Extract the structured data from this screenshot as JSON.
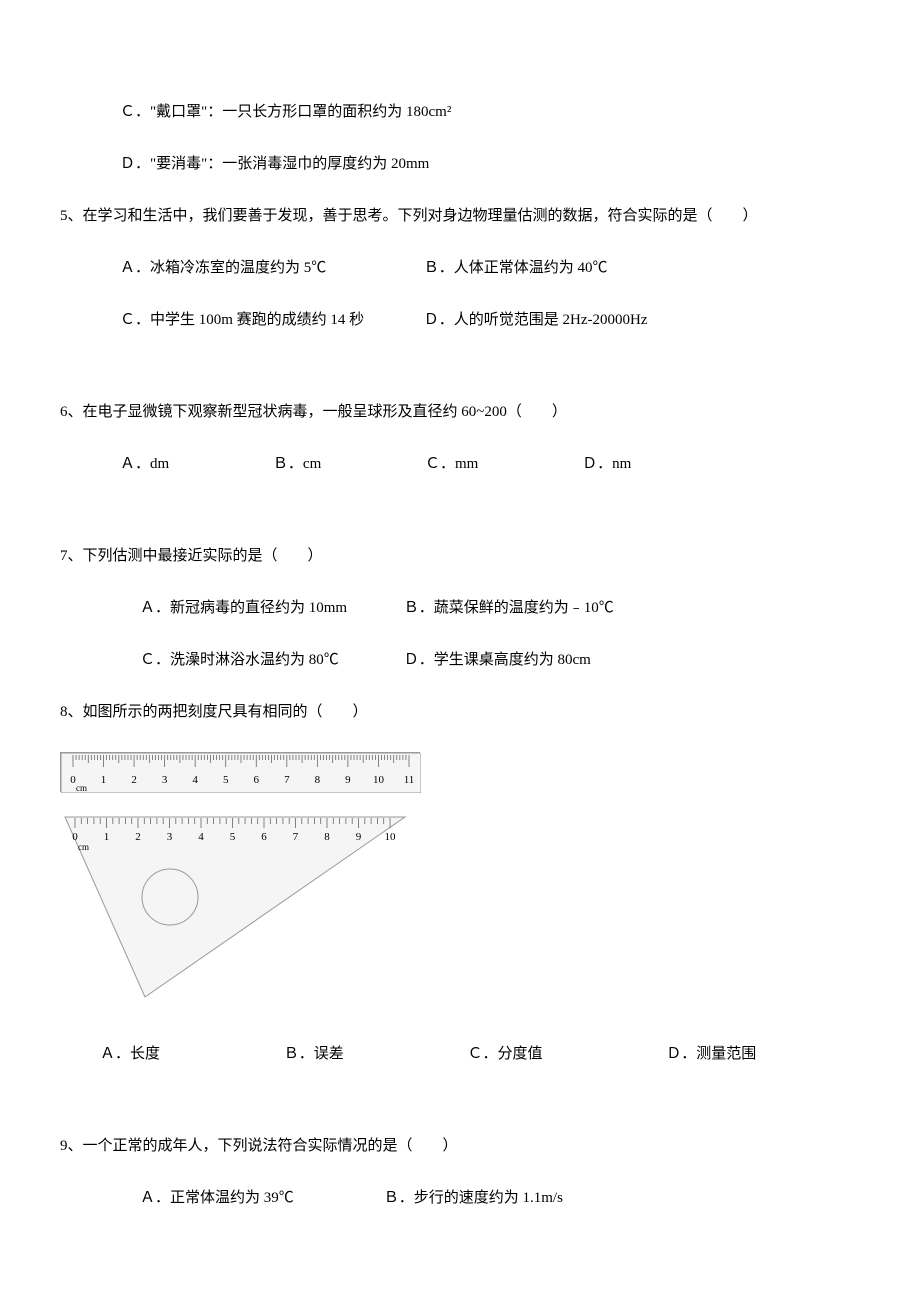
{
  "q4": {
    "optC": "Ｃ．\"戴口罩\"：一只长方形口罩的面积约为 180cm²",
    "optD": "Ｄ．\"要消毒\"：一张消毒湿巾的厚度约为 20mm"
  },
  "q5": {
    "stem": "5、在学习和生活中，我们要善于发现，善于思考。下列对身边物理量估测的数据，符合实际的是（　　）",
    "optA": "Ａ．冰箱冷冻室的温度约为 5℃",
    "optB": "Ｂ．人体正常体温约为 40℃",
    "optC": "Ｃ．中学生 100m 赛跑的成绩约 14 秒",
    "optD": "Ｄ．人的听觉范围是 2Hz-20000Hz"
  },
  "q6": {
    "stem": "6、在电子显微镜下观察新型冠状病毒，一般呈球形及直径约 60~200（　　）",
    "optA": "Ａ．dm",
    "optB": "Ｂ．cm",
    "optC": "Ｃ．mm",
    "optD": "Ｄ．nm"
  },
  "q7": {
    "stem": "7、下列估测中最接近实际的是（　　）",
    "optA": "Ａ．新冠病毒的直径约为 10mm",
    "optB": "Ｂ．蔬菜保鲜的温度约为﹣10℃",
    "optC": "Ｃ．洗澡时淋浴水温约为 80℃",
    "optD": "Ｄ．学生课桌高度约为 80cm"
  },
  "q8": {
    "stem": "8、如图所示的两把刻度尺具有相同的（　　）",
    "optA": "Ａ．长度",
    "optB": "Ｂ．误差",
    "optC": "Ｃ．分度值",
    "optD": "Ｄ．测量范围",
    "ruler": {
      "unit_label": "cm",
      "straight_length": 11,
      "triangle_length": 10,
      "straight_numbers": [
        0,
        1,
        2,
        3,
        4,
        5,
        6,
        7,
        8,
        9,
        10,
        11
      ],
      "triangle_numbers": [
        0,
        1,
        2,
        3,
        4,
        5,
        6,
        7,
        8,
        9,
        10
      ],
      "tick_major_per_cm": 1,
      "tick_minor_per_cm": 2,
      "tick_tiny_per_cm": 10,
      "colors": {
        "ruler_bg": "#f5f5f5",
        "ruler_border": "#999999",
        "tick": "#666666",
        "text": "#000000"
      }
    }
  },
  "q9": {
    "stem": "9、一个正常的成年人，下列说法符合实际情况的是（　　）",
    "optA": "Ａ．正常体温约为 39℃",
    "optB": "Ｂ．步行的速度约为 1.1m/s"
  },
  "style": {
    "font_family": "SimSun",
    "font_size_pt": 11,
    "text_color": "#000000",
    "background_color": "#ffffff",
    "line_height": 1.6
  }
}
